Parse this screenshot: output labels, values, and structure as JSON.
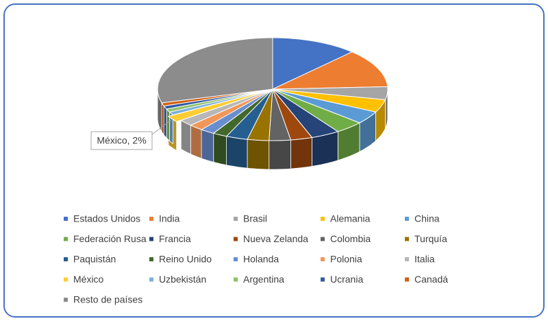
{
  "chart_data": {
    "type": "pie3d",
    "categories": [
      "Estados Unidos",
      "India",
      "Brasil",
      "Alemania",
      "China",
      "Federación Rusa",
      "Francia",
      "Nueva Zelanda",
      "Colombia",
      "Turquía",
      "Paquistán",
      "Reino Unido",
      "Holanda",
      "Polonia",
      "Italia",
      "México",
      "Uzbekistán",
      "Argentina",
      "Ucrania",
      "Canadá",
      "Resto de países"
    ],
    "values": [
      12,
      12,
      4,
      4,
      4,
      4,
      4,
      3,
      3,
      3,
      3,
      2,
      2,
      2,
      2,
      2,
      1,
      1,
      1,
      1,
      29
    ],
    "value_labels": [
      null,
      null,
      null,
      null,
      null,
      null,
      null,
      null,
      null,
      null,
      null,
      null,
      null,
      null,
      null,
      "México, 2%",
      null,
      null,
      null,
      null,
      null
    ],
    "colors": [
      "#4472c4",
      "#ed7d31",
      "#a5a5a5",
      "#ffc000",
      "#5b9bd5",
      "#70ad47",
      "#264478",
      "#9e480e",
      "#636363",
      "#997300",
      "#255e91",
      "#43682b",
      "#698ed0",
      "#f1975a",
      "#b7b7b7",
      "#ffcd33",
      "#7cafdd",
      "#8cc168",
      "#335aa1",
      "#d26012",
      "#8c8c8c"
    ],
    "legend": "bottom"
  }
}
